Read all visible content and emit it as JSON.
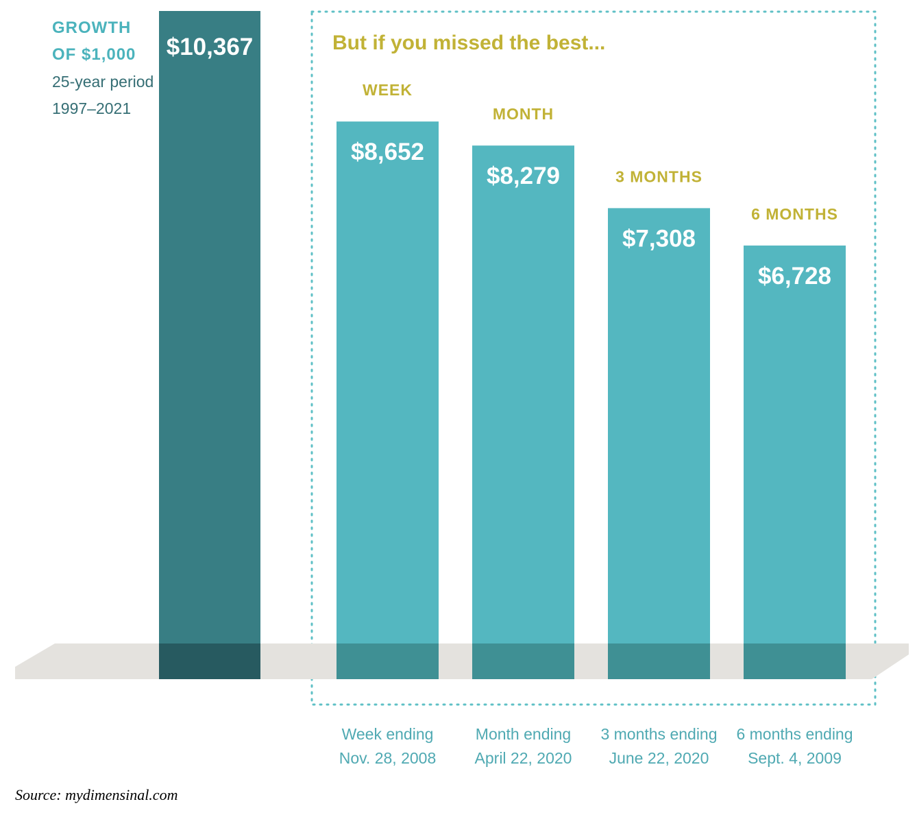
{
  "chart_data": {
    "type": "bar",
    "title": "But if you missed the best...",
    "heading": {
      "line1": "GROWTH",
      "line2": "OF $1,000",
      "line3": "25-year period",
      "line4": "1997–2021"
    },
    "main_bar": {
      "value": 10367,
      "label": "$10,367"
    },
    "categories": [
      "WEEK",
      "MONTH",
      "3 MONTHS",
      "6 MONTHS"
    ],
    "values": [
      8652,
      8279,
      7308,
      6728
    ],
    "value_labels": [
      "$8,652",
      "$8,279",
      "$7,308",
      "$6,728"
    ],
    "x_labels": [
      [
        "Week ending",
        "Nov. 28, 2008"
      ],
      [
        "Month ending",
        "April 22, 2020"
      ],
      [
        "3 months ending",
        "June 22, 2020"
      ],
      [
        "6 months ending",
        "Sept. 4, 2009"
      ]
    ],
    "xlabel": "",
    "ylabel": "",
    "ylim": [
      0,
      10367
    ]
  },
  "source": "Source: mydimensinal.com",
  "colors": {
    "main_bar": "#387E84",
    "bars": "#54B7C0",
    "accent_gold": "#C1B236",
    "heading_teal": "#4BB3BC",
    "heading_dark": "#356E74",
    "floor": "#E4E2DE",
    "dotted_box": "#5FC0C6",
    "bar_text": "#FFFFFF",
    "date_text": "#4FA9B2"
  }
}
